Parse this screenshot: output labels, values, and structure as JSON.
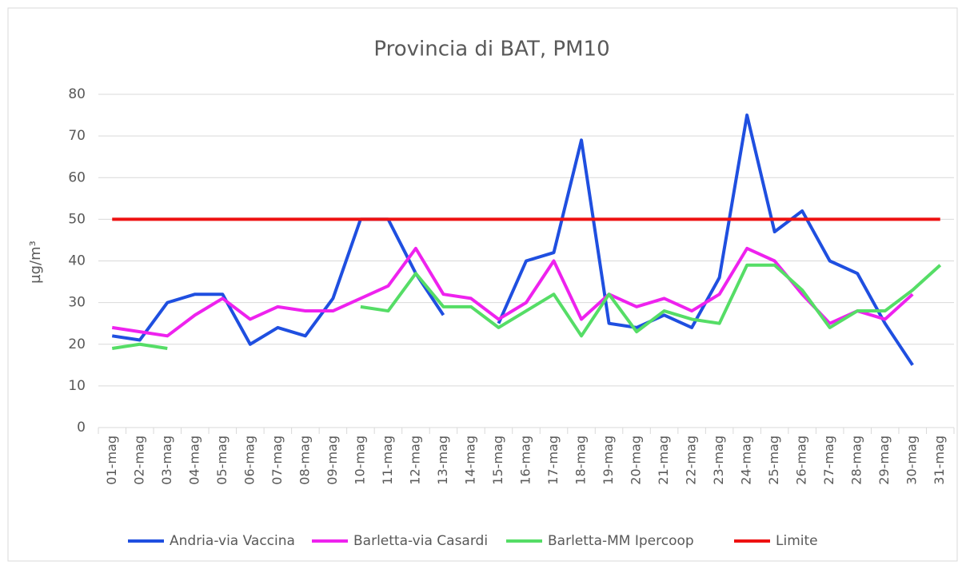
{
  "chart_data": {
    "type": "line",
    "title": "Provincia di BAT, PM10",
    "y_label": "µg/m³",
    "categories": [
      "01-mag",
      "02-mag",
      "03-mag",
      "04-mag",
      "05-mag",
      "06-mag",
      "07-mag",
      "08-mag",
      "09-mag",
      "10-mag",
      "11-mag",
      "12-mag",
      "13-mag",
      "14-mag",
      "15-mag",
      "16-mag",
      "17-mag",
      "18-mag",
      "19-mag",
      "20-mag",
      "21-mag",
      "22-mag",
      "23-mag",
      "24-mag",
      "25-mag",
      "26-mag",
      "27-mag",
      "28-mag",
      "29-mag",
      "30-mag",
      "31-mag"
    ],
    "series": [
      {
        "name": "Andria-via Vaccina",
        "color": "#1f4fe0",
        "values": [
          22,
          21,
          30,
          32,
          32,
          20,
          24,
          22,
          31,
          50,
          50,
          37,
          27,
          null,
          25,
          40,
          42,
          69,
          25,
          24,
          27,
          24,
          36,
          75,
          47,
          52,
          40,
          37,
          25,
          15,
          null
        ]
      },
      {
        "name": "Barletta-via Casardi",
        "color": "#ee22ee",
        "values": [
          24,
          23,
          22,
          27,
          31,
          26,
          29,
          28,
          28,
          31,
          34,
          43,
          32,
          31,
          26,
          30,
          40,
          26,
          32,
          29,
          31,
          28,
          32,
          43,
          40,
          32,
          25,
          28,
          26,
          32,
          null
        ]
      },
      {
        "name": "Barletta-MM Ipercoop",
        "color": "#55dd66",
        "values": [
          19,
          20,
          19,
          null,
          null,
          null,
          null,
          null,
          null,
          29,
          28,
          37,
          29,
          29,
          24,
          28,
          32,
          22,
          32,
          23,
          28,
          26,
          25,
          39,
          39,
          33,
          24,
          28,
          28,
          33,
          39
        ]
      },
      {
        "name": "Limite",
        "color": "#ee1111",
        "values": [
          50,
          50,
          50,
          50,
          50,
          50,
          50,
          50,
          50,
          50,
          50,
          50,
          50,
          50,
          50,
          50,
          50,
          50,
          50,
          50,
          50,
          50,
          50,
          50,
          50,
          50,
          50,
          50,
          50,
          50,
          50
        ]
      }
    ],
    "ylim": [
      0,
      80
    ],
    "yticks": [
      0,
      10,
      20,
      30,
      40,
      50,
      60,
      70,
      80
    ],
    "grid": true,
    "legend": "bottom"
  }
}
